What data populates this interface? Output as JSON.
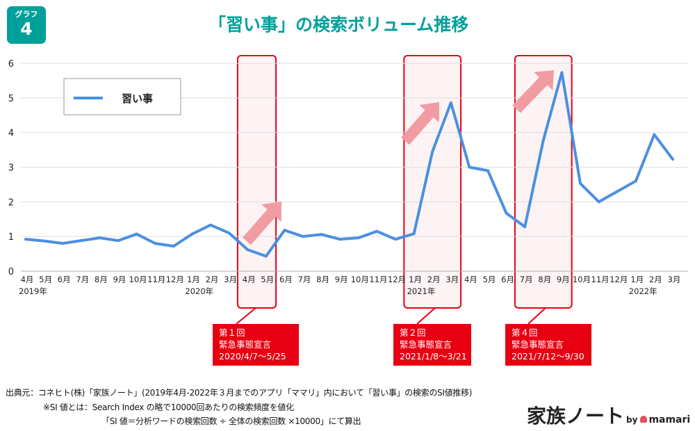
{
  "badge": {
    "label": "グラフ",
    "number": "4"
  },
  "title": "「習い事」の検索ボリューム推移",
  "colors": {
    "accent": "#00a09a",
    "line": "#4a90e2",
    "highlight_border": "#e60012",
    "highlight_fill": "#fdf3f4",
    "arrow": "#f19ca3"
  },
  "chart_data": {
    "type": "line",
    "title": "「習い事」の検索ボリューム推移",
    "xlabel": "",
    "ylabel": "",
    "ylim": [
      0,
      6
    ],
    "yticks": [
      0,
      1,
      2,
      3,
      4,
      5,
      6
    ],
    "grid": true,
    "legend": "top-left",
    "categories": [
      "4月",
      "5月",
      "6月",
      "7月",
      "8月",
      "9月",
      "10月",
      "11月",
      "12月",
      "1月",
      "2月",
      "3月",
      "4月",
      "5月",
      "6月",
      "7月",
      "8月",
      "9月",
      "10月",
      "11月",
      "12月",
      "1月",
      "2月",
      "3月",
      "4月",
      "5月",
      "6月",
      "7月",
      "8月",
      "9月",
      "10月",
      "11月",
      "12月",
      "1月",
      "2月",
      "3月"
    ],
    "year_labels": [
      {
        "index": 0,
        "label": "2019年"
      },
      {
        "index": 9,
        "label": "2020年"
      },
      {
        "index": 21,
        "label": "2021年"
      },
      {
        "index": 33,
        "label": "2022年"
      }
    ],
    "series": [
      {
        "name": "習い事",
        "values": [
          0.92,
          0.87,
          0.8,
          0.88,
          0.96,
          0.88,
          1.07,
          0.8,
          0.72,
          1.07,
          1.33,
          1.1,
          0.62,
          0.43,
          1.18,
          1.0,
          1.06,
          0.92,
          0.96,
          1.15,
          0.92,
          1.08,
          3.45,
          4.86,
          3.0,
          2.9,
          1.67,
          1.28,
          3.78,
          5.73,
          2.53,
          2.0,
          2.3,
          2.6,
          3.94,
          3.23
        ]
      }
    ],
    "highlights": [
      {
        "start_index": 12,
        "end_index": 13,
        "label_lines": [
          "第１回",
          "緊急事態宣言",
          "2020/4/7～5/25"
        ]
      },
      {
        "start_index": 21,
        "end_index": 23,
        "label_lines": [
          "第２回",
          "緊急事態宣言",
          "2021/1/8～3/21"
        ]
      },
      {
        "start_index": 27,
        "end_index": 29,
        "label_lines": [
          "第４回",
          "緊急事態宣言",
          "2021/7/12～9/30"
        ]
      }
    ]
  },
  "footer": {
    "source": "出典元：コネヒト(株)「家族ノート」(2019年4月-2022年３月までのアプリ「ママリ」内において「習い事」の検索のSI値推移)",
    "note1": "※SI 値とは：Search Index の略で10000回あたりの検索頻度を値化",
    "note2": "「SI 値＝分析ワードの検索回数 ÷ 全体の検索回数 ×10000」にて算出"
  },
  "logo": {
    "main": "家族ノート",
    "by": "by",
    "brand": "mamari"
  }
}
